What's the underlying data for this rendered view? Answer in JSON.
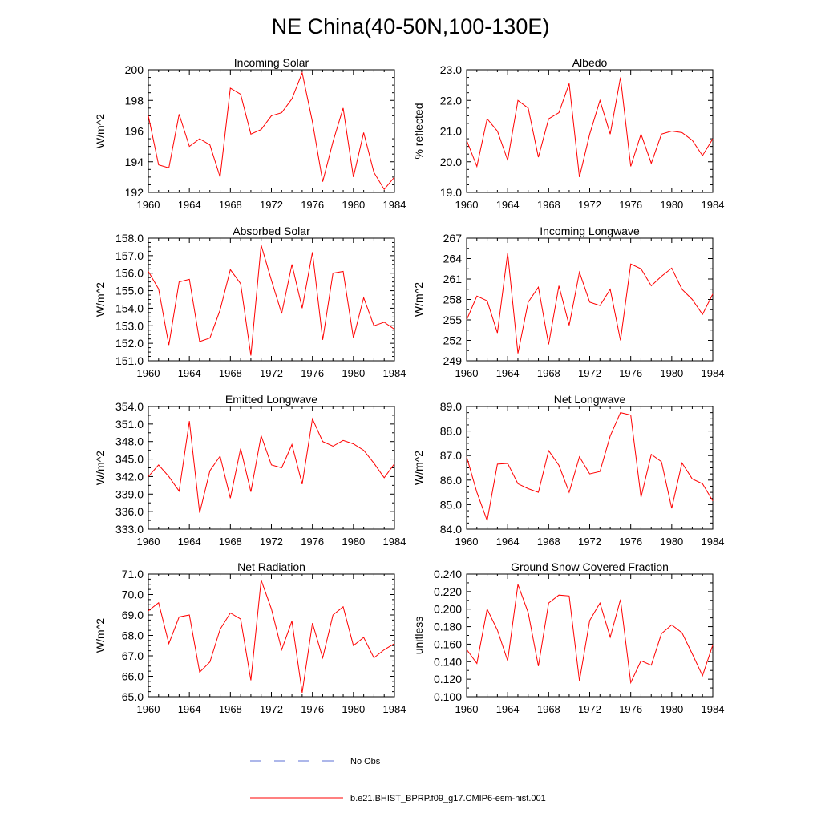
{
  "figure": {
    "title": "NE China(40-50N,100-130E)",
    "legend": [
      {
        "label": "No Obs",
        "color": "#5b6fd6",
        "style": "dashed"
      },
      {
        "label": "b.e21.BHIST_BPRP.f09_g17.CMIP6-esm-hist.001",
        "color": "#ff0000",
        "style": "solid"
      }
    ]
  },
  "chart_data": [
    {
      "type": "line",
      "title": "Incoming Solar",
      "xlabel": "",
      "ylabel": "W/m^2",
      "xlim": [
        1960,
        1984
      ],
      "ylim": [
        192,
        200
      ],
      "xticks": [
        1960,
        1964,
        1968,
        1972,
        1976,
        1980,
        1984
      ],
      "yticks": [
        192,
        194,
        196,
        198,
        200
      ],
      "ydecimals": 0,
      "yminor": 4,
      "series": [
        {
          "color": "#ff0000",
          "x": [
            1960,
            1961,
            1962,
            1963,
            1964,
            1965,
            1966,
            1967,
            1968,
            1969,
            1970,
            1971,
            1972,
            1973,
            1974,
            1975,
            1976,
            1977,
            1978,
            1979,
            1980,
            1981,
            1982,
            1983,
            1984
          ],
          "values": [
            197.0,
            193.8,
            193.6,
            197.1,
            195.0,
            195.5,
            195.1,
            193.0,
            198.8,
            198.4,
            195.8,
            196.1,
            197.0,
            197.2,
            198.1,
            199.8,
            196.6,
            192.7,
            195.3,
            197.5,
            193.0,
            195.9,
            193.3,
            192.2,
            193.0
          ]
        }
      ]
    },
    {
      "type": "line",
      "title": "Albedo",
      "xlabel": "",
      "ylabel": "% reflected",
      "xlim": [
        1960,
        1984
      ],
      "ylim": [
        19.0,
        23.0
      ],
      "xticks": [
        1960,
        1964,
        1968,
        1972,
        1976,
        1980,
        1984
      ],
      "yticks": [
        19.0,
        20.0,
        21.0,
        22.0,
        23.0
      ],
      "ydecimals": 1,
      "yminor": 4,
      "series": [
        {
          "color": "#ff0000",
          "x": [
            1960,
            1961,
            1962,
            1963,
            1964,
            1965,
            1966,
            1967,
            1968,
            1969,
            1970,
            1971,
            1972,
            1973,
            1974,
            1975,
            1976,
            1977,
            1978,
            1979,
            1980,
            1981,
            1982,
            1983,
            1984
          ],
          "values": [
            20.7,
            19.85,
            21.4,
            21.0,
            20.05,
            22.0,
            21.75,
            20.15,
            21.4,
            21.6,
            22.55,
            19.5,
            20.9,
            22.0,
            20.9,
            22.75,
            19.85,
            20.9,
            19.95,
            20.9,
            21.0,
            20.95,
            20.7,
            20.2,
            20.75
          ]
        }
      ]
    },
    {
      "type": "line",
      "title": "Absorbed Solar",
      "xlabel": "",
      "ylabel": "W/m^2",
      "xlim": [
        1960,
        1984
      ],
      "ylim": [
        151.0,
        158.0
      ],
      "xticks": [
        1960,
        1964,
        1968,
        1972,
        1976,
        1980,
        1984
      ],
      "yticks": [
        151.0,
        152.0,
        153.0,
        154.0,
        155.0,
        156.0,
        157.0,
        158.0
      ],
      "ydecimals": 1,
      "yminor": 4,
      "series": [
        {
          "color": "#ff0000",
          "x": [
            1960,
            1961,
            1962,
            1963,
            1964,
            1965,
            1966,
            1967,
            1968,
            1969,
            1970,
            1971,
            1972,
            1973,
            1974,
            1975,
            1976,
            1977,
            1978,
            1979,
            1980,
            1981,
            1982,
            1983,
            1984
          ],
          "values": [
            156.1,
            155.1,
            151.9,
            155.5,
            155.65,
            152.1,
            152.3,
            153.9,
            156.2,
            155.4,
            151.3,
            157.6,
            155.6,
            153.7,
            156.5,
            154.0,
            157.2,
            152.2,
            156.0,
            156.1,
            152.3,
            154.6,
            153.0,
            153.2,
            152.8
          ]
        }
      ]
    },
    {
      "type": "line",
      "title": "Incoming Longwave",
      "xlabel": "",
      "ylabel": "W/m^2",
      "xlim": [
        1960,
        1984
      ],
      "ylim": [
        249,
        267
      ],
      "xticks": [
        1960,
        1964,
        1968,
        1972,
        1976,
        1980,
        1984
      ],
      "yticks": [
        249,
        252,
        255,
        258,
        261,
        264,
        267
      ],
      "ydecimals": 0,
      "yminor": 2,
      "series": [
        {
          "color": "#ff0000",
          "x": [
            1960,
            1961,
            1962,
            1963,
            1964,
            1965,
            1966,
            1967,
            1968,
            1969,
            1970,
            1971,
            1972,
            1973,
            1974,
            1975,
            1976,
            1977,
            1978,
            1979,
            1980,
            1981,
            1982,
            1983,
            1984
          ],
          "values": [
            255.0,
            258.5,
            257.8,
            253.1,
            264.8,
            250.1,
            257.6,
            259.8,
            251.4,
            260.0,
            254.2,
            262.0,
            257.6,
            257.1,
            259.5,
            252.0,
            263.2,
            262.5,
            260.0,
            261.4,
            262.6,
            259.5,
            258.0,
            255.8,
            258.8
          ]
        }
      ]
    },
    {
      "type": "line",
      "title": "Emitted Longwave",
      "xlabel": "",
      "ylabel": "W/m^2",
      "xlim": [
        1960,
        1984
      ],
      "ylim": [
        333.0,
        354.0
      ],
      "xticks": [
        1960,
        1964,
        1968,
        1972,
        1976,
        1980,
        1984
      ],
      "yticks": [
        333.0,
        336.0,
        339.0,
        342.0,
        345.0,
        348.0,
        351.0,
        354.0
      ],
      "ydecimals": 1,
      "yminor": 2,
      "series": [
        {
          "color": "#ff0000",
          "x": [
            1960,
            1961,
            1962,
            1963,
            1964,
            1965,
            1966,
            1967,
            1968,
            1969,
            1970,
            1971,
            1972,
            1973,
            1974,
            1975,
            1976,
            1977,
            1978,
            1979,
            1980,
            1981,
            1982,
            1983,
            1984
          ],
          "values": [
            342.0,
            344.0,
            342.0,
            339.5,
            351.5,
            335.8,
            343.0,
            345.5,
            338.3,
            346.8,
            339.4,
            349.0,
            344.0,
            343.5,
            347.5,
            340.7,
            351.9,
            348.0,
            347.2,
            348.2,
            347.6,
            346.5,
            344.3,
            341.8,
            344.2
          ]
        }
      ]
    },
    {
      "type": "line",
      "title": "Net Longwave",
      "xlabel": "",
      "ylabel": "W/m^2",
      "xlim": [
        1960,
        1984
      ],
      "ylim": [
        84.0,
        89.0
      ],
      "xticks": [
        1960,
        1964,
        1968,
        1972,
        1976,
        1980,
        1984
      ],
      "yticks": [
        84.0,
        85.0,
        86.0,
        87.0,
        88.0,
        89.0
      ],
      "ydecimals": 1,
      "yminor": 4,
      "series": [
        {
          "color": "#ff0000",
          "x": [
            1960,
            1961,
            1962,
            1963,
            1964,
            1965,
            1966,
            1967,
            1968,
            1969,
            1970,
            1971,
            1972,
            1973,
            1974,
            1975,
            1976,
            1977,
            1978,
            1979,
            1980,
            1981,
            1982,
            1983,
            1984
          ],
          "values": [
            86.95,
            85.5,
            84.35,
            86.65,
            86.68,
            85.85,
            85.65,
            85.5,
            87.2,
            86.6,
            85.5,
            86.95,
            86.25,
            86.35,
            87.8,
            88.75,
            88.65,
            85.3,
            87.05,
            86.75,
            84.85,
            86.7,
            86.05,
            85.85,
            85.15
          ]
        }
      ]
    },
    {
      "type": "line",
      "title": "Net Radiation",
      "xlabel": "",
      "ylabel": "W/m^2",
      "xlim": [
        1960,
        1984
      ],
      "ylim": [
        65.0,
        71.0
      ],
      "xticks": [
        1960,
        1964,
        1968,
        1972,
        1976,
        1980,
        1984
      ],
      "yticks": [
        65.0,
        66.0,
        67.0,
        68.0,
        69.0,
        70.0,
        71.0
      ],
      "ydecimals": 1,
      "yminor": 4,
      "series": [
        {
          "color": "#ff0000",
          "x": [
            1960,
            1961,
            1962,
            1963,
            1964,
            1965,
            1966,
            1967,
            1968,
            1969,
            1970,
            1971,
            1972,
            1973,
            1974,
            1975,
            1976,
            1977,
            1978,
            1979,
            1980,
            1981,
            1982,
            1983,
            1984
          ],
          "values": [
            69.2,
            69.6,
            67.6,
            68.9,
            69.0,
            66.2,
            66.7,
            68.3,
            69.1,
            68.8,
            65.8,
            70.7,
            69.3,
            67.3,
            68.7,
            65.2,
            68.6,
            66.9,
            69.0,
            69.4,
            67.5,
            67.9,
            66.9,
            67.3,
            67.6
          ]
        }
      ]
    },
    {
      "type": "line",
      "title": "Ground Snow Covered Fraction",
      "xlabel": "",
      "ylabel": "unitless",
      "xlim": [
        1960,
        1984
      ],
      "ylim": [
        0.1,
        0.24
      ],
      "xticks": [
        1960,
        1964,
        1968,
        1972,
        1976,
        1980,
        1984
      ],
      "yticks": [
        0.1,
        0.12,
        0.14,
        0.16,
        0.18,
        0.2,
        0.22,
        0.24
      ],
      "ydecimals": 3,
      "yminor": 2,
      "series": [
        {
          "color": "#ff0000",
          "x": [
            1960,
            1961,
            1962,
            1963,
            1964,
            1965,
            1966,
            1967,
            1968,
            1969,
            1970,
            1971,
            1972,
            1973,
            1974,
            1975,
            1976,
            1977,
            1978,
            1979,
            1980,
            1981,
            1982,
            1983,
            1984
          ],
          "values": [
            0.154,
            0.138,
            0.2,
            0.176,
            0.141,
            0.228,
            0.196,
            0.135,
            0.207,
            0.216,
            0.215,
            0.118,
            0.187,
            0.207,
            0.168,
            0.211,
            0.116,
            0.141,
            0.136,
            0.172,
            0.182,
            0.173,
            0.149,
            0.124,
            0.159
          ]
        }
      ]
    }
  ]
}
